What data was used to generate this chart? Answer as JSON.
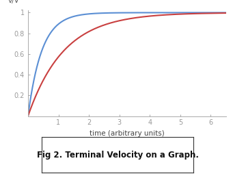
{
  "ylabel": "v/Vᵀ",
  "xlabel": "time (arbitrary units)",
  "caption": "Fig 2. Terminal Velocity on a Graph.",
  "xlim": [
    0,
    6.5
  ],
  "ylim": [
    0,
    1.02
  ],
  "xticks": [
    1,
    2,
    3,
    4,
    5,
    6
  ],
  "yticks": [
    0.2,
    0.4,
    0.6,
    0.8,
    1.0
  ],
  "ytick_labels": [
    "0.2",
    "0.4",
    "0.6",
    "0.8",
    "1"
  ],
  "blue_k": 2.2,
  "red_k": 0.85,
  "blue_color": "#5b8fd4",
  "red_color": "#c94040",
  "line_width": 1.5,
  "bg_color": "#ffffff",
  "plot_bg": "#ffffff",
  "caption_fontsize": 8.5,
  "axis_label_fontsize": 7.5,
  "tick_fontsize": 7,
  "ylabel_fontsize": 7.5
}
